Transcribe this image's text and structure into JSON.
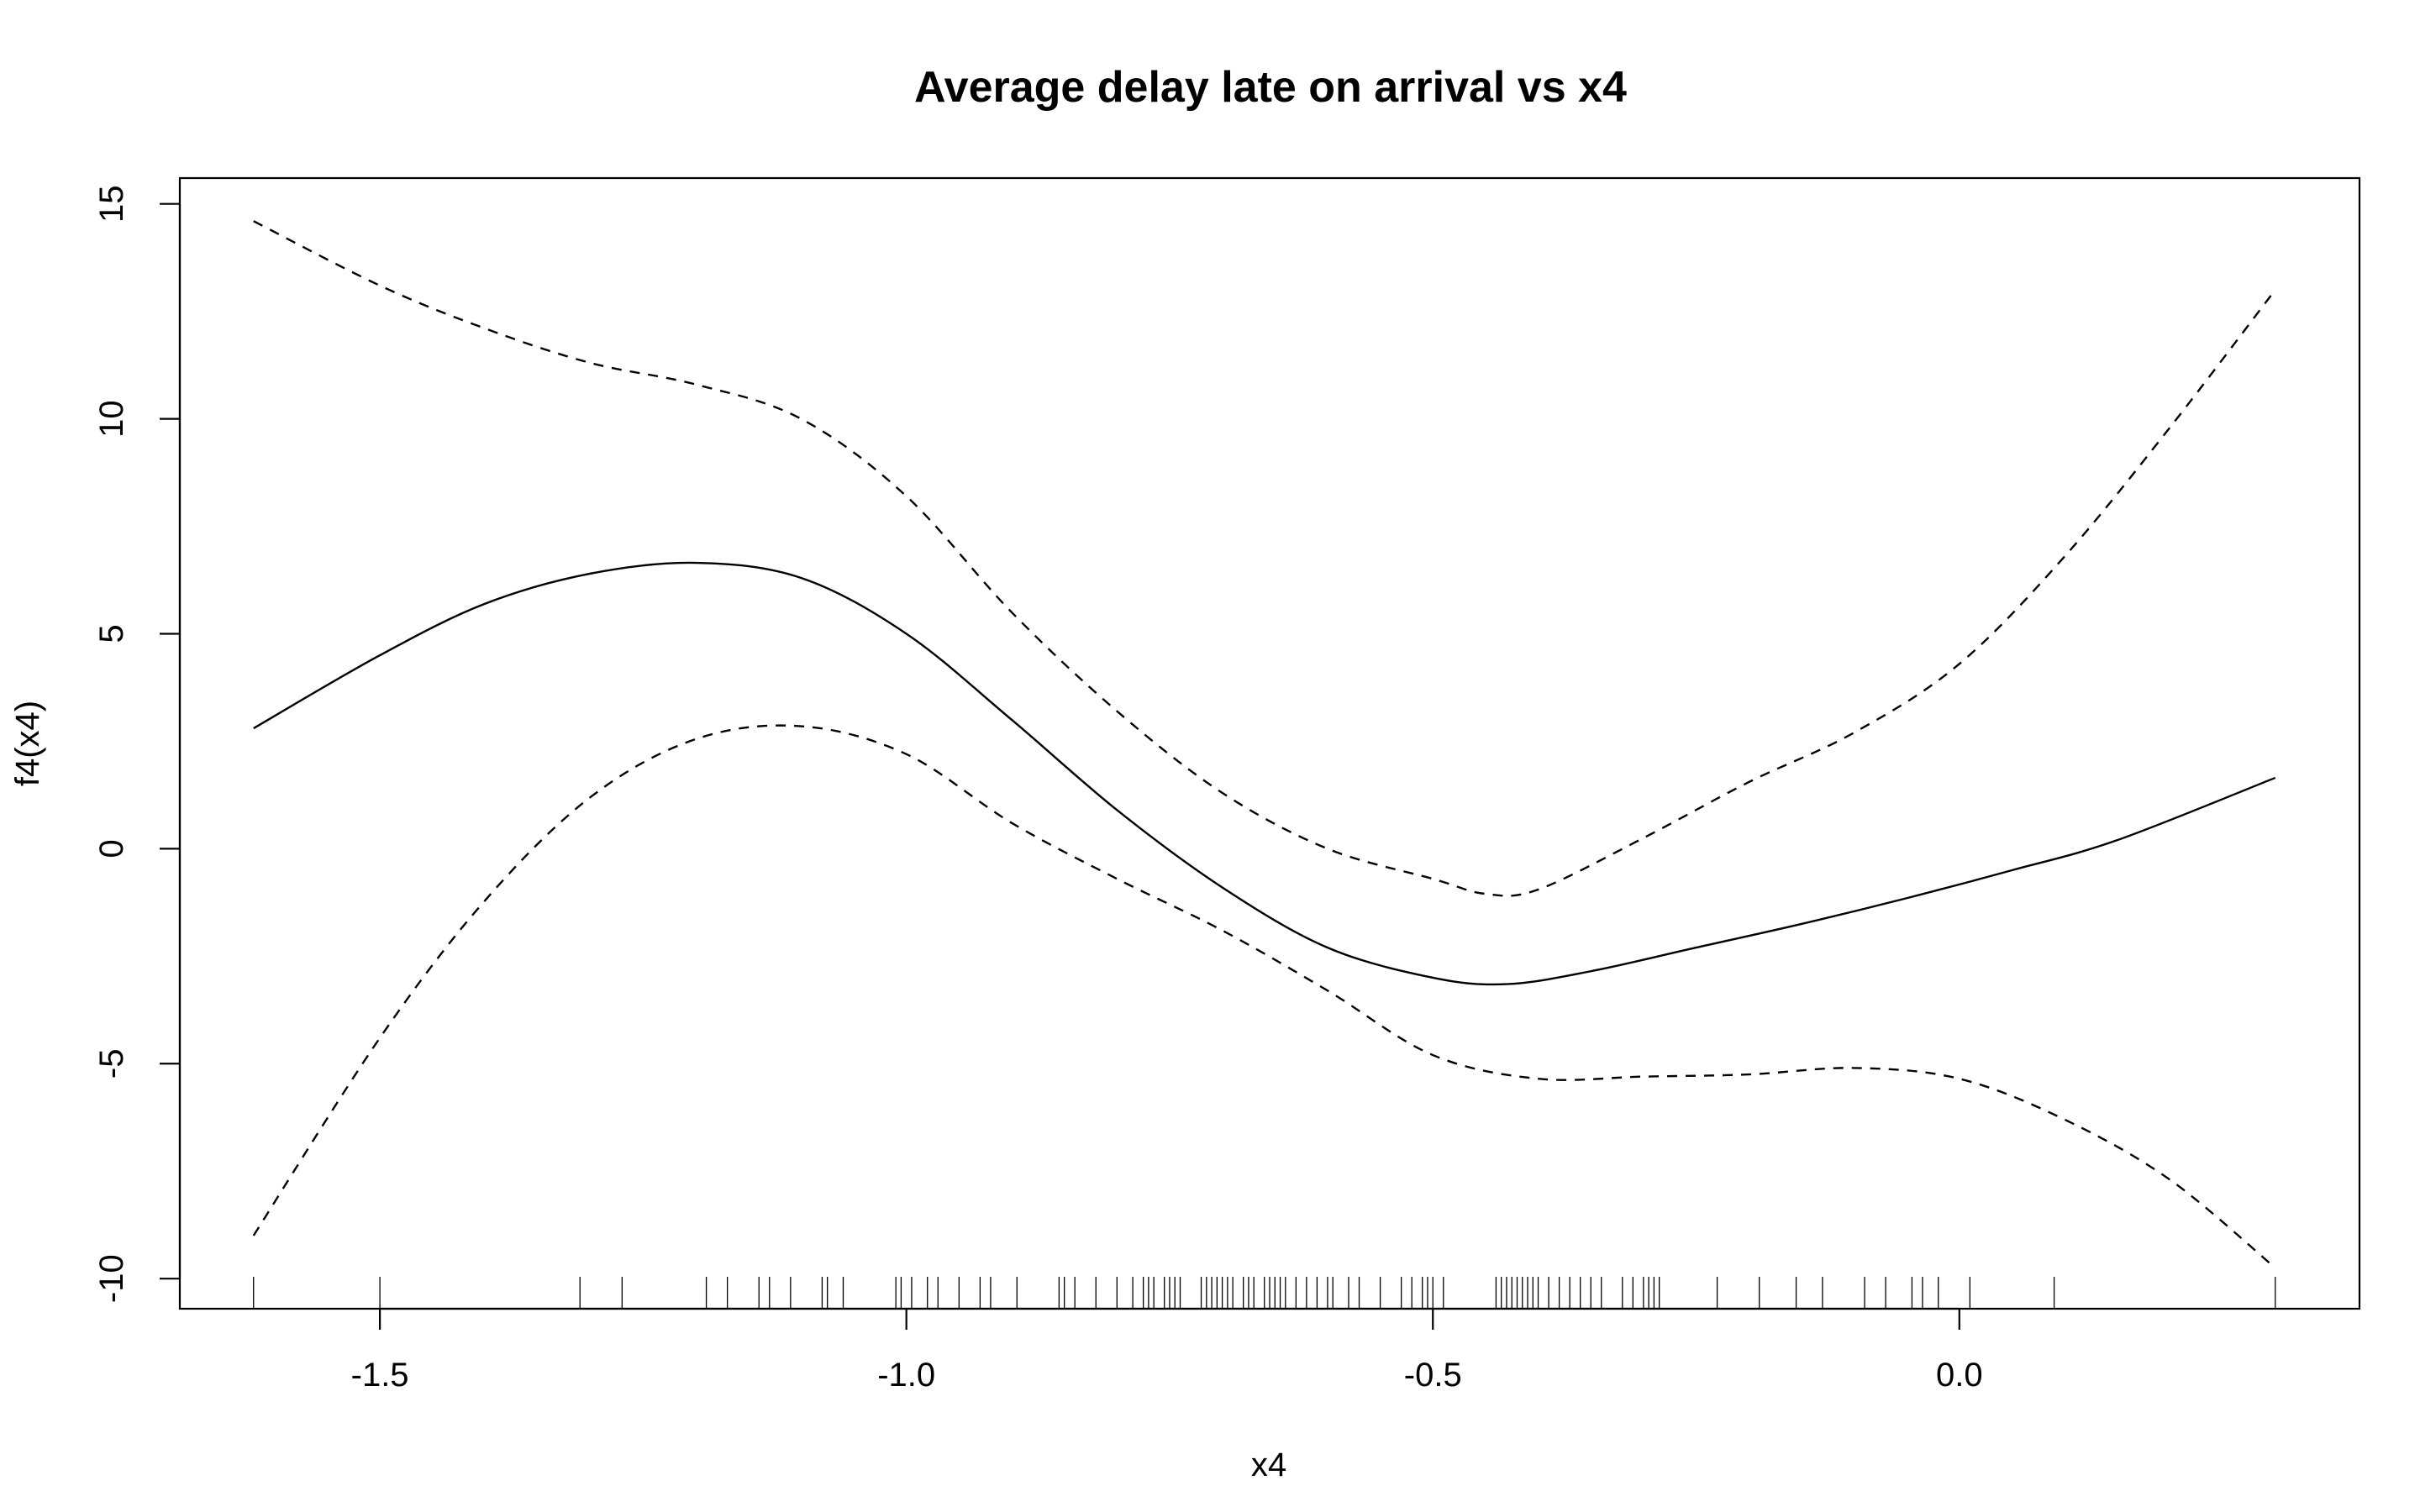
{
  "chart_data": {
    "type": "line",
    "title": "Average delay late on arrival vs x4",
    "xlabel": "x4",
    "ylabel": "f4(x4)",
    "xlim": [
      -1.69,
      0.38
    ],
    "ylim": [
      -10.7,
      15.6
    ],
    "x_ticks": [
      -1.5,
      -1.0,
      -0.5,
      0.0
    ],
    "x_tick_labels": [
      "-1.5",
      "-1.0",
      "-0.5",
      "0.0"
    ],
    "y_ticks": [
      -10,
      -5,
      0,
      5,
      10,
      15
    ],
    "y_tick_labels": [
      "-10",
      "-5",
      "0",
      "5",
      "10",
      "15"
    ],
    "grid": false,
    "legend": "none",
    "series": [
      {
        "style": "solid",
        "x": [
          -1.62,
          -1.5,
          -1.4,
          -1.3,
          -1.2,
          -1.1,
          -1.0,
          -0.9,
          -0.8,
          -0.7,
          -0.6,
          -0.5,
          -0.43,
          -0.35,
          -0.25,
          -0.15,
          -0.05,
          0.05,
          0.15,
          0.3
        ],
        "y": [
          2.8,
          4.5,
          5.7,
          6.4,
          6.65,
          6.3,
          5.0,
          3.0,
          0.9,
          -0.9,
          -2.3,
          -3.0,
          -3.15,
          -2.85,
          -2.3,
          -1.75,
          -1.15,
          -0.5,
          0.2,
          1.65
        ]
      },
      {
        "style": "dashed",
        "x": [
          -1.62,
          -1.5,
          -1.4,
          -1.3,
          -1.2,
          -1.1,
          -1.0,
          -0.9,
          -0.8,
          -0.7,
          -0.6,
          -0.5,
          -0.45,
          -0.4,
          -0.3,
          -0.2,
          -0.1,
          0.0,
          0.1,
          0.2,
          0.3
        ],
        "y": [
          14.6,
          13.1,
          12.1,
          11.3,
          10.8,
          10.0,
          8.2,
          5.5,
          3.2,
          1.3,
          0.0,
          -0.7,
          -1.05,
          -0.95,
          0.25,
          1.55,
          2.7,
          4.3,
          6.8,
          9.8,
          13.0
        ]
      },
      {
        "style": "dashed",
        "x": [
          -1.62,
          -1.5,
          -1.4,
          -1.3,
          -1.2,
          -1.1,
          -1.0,
          -0.9,
          -0.8,
          -0.7,
          -0.6,
          -0.5,
          -0.4,
          -0.3,
          -0.2,
          -0.1,
          0.0,
          0.1,
          0.2,
          0.3
        ],
        "y": [
          -9.0,
          -4.4,
          -1.2,
          1.2,
          2.55,
          2.85,
          2.2,
          0.6,
          -0.7,
          -1.9,
          -3.3,
          -4.8,
          -5.35,
          -5.3,
          -5.25,
          -5.1,
          -5.35,
          -6.3,
          -7.7,
          -9.75
        ]
      }
    ],
    "rug_x": [
      -1.62,
      -1.5,
      -1.31,
      -1.27,
      -1.19,
      -1.17,
      -1.14,
      -1.13,
      -1.11,
      -1.08,
      -1.075,
      -1.06,
      -1.01,
      -1.005,
      -0.995,
      -0.98,
      -0.97,
      -0.95,
      -0.93,
      -0.92,
      -0.895,
      -0.855,
      -0.85,
      -0.84,
      -0.82,
      -0.8,
      -0.785,
      -0.775,
      -0.77,
      -0.765,
      -0.755,
      -0.75,
      -0.745,
      -0.74,
      -0.72,
      -0.715,
      -0.71,
      -0.705,
      -0.7,
      -0.695,
      -0.69,
      -0.68,
      -0.675,
      -0.67,
      -0.66,
      -0.655,
      -0.65,
      -0.645,
      -0.64,
      -0.63,
      -0.62,
      -0.61,
      -0.6,
      -0.595,
      -0.58,
      -0.57,
      -0.55,
      -0.53,
      -0.52,
      -0.51,
      -0.505,
      -0.5,
      -0.49,
      -0.44,
      -0.435,
      -0.43,
      -0.425,
      -0.42,
      -0.415,
      -0.41,
      -0.405,
      -0.4,
      -0.39,
      -0.38,
      -0.37,
      -0.36,
      -0.35,
      -0.34,
      -0.32,
      -0.31,
      -0.3,
      -0.295,
      -0.29,
      -0.285,
      -0.23,
      -0.19,
      -0.155,
      -0.13,
      -0.09,
      -0.07,
      -0.045,
      -0.035,
      -0.02,
      0.01,
      0.09,
      0.3
    ]
  }
}
